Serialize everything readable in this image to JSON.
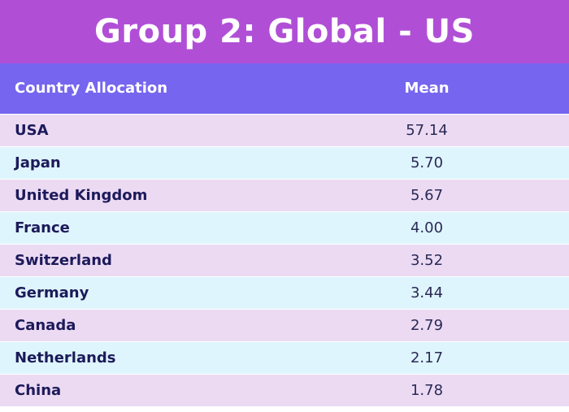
{
  "title": "Group 2: Global - US",
  "table": {
    "headers": {
      "country": "Country Allocation",
      "mean": "Mean"
    },
    "rows": [
      {
        "country": "USA",
        "mean": "57.14"
      },
      {
        "country": "Japan",
        "mean": "5.70"
      },
      {
        "country": "United Kingdom",
        "mean": "5.67"
      },
      {
        "country": "France",
        "mean": "4.00"
      },
      {
        "country": "Switzerland",
        "mean": "3.52"
      },
      {
        "country": "Germany",
        "mean": "3.44"
      },
      {
        "country": "Canada",
        "mean": "2.79"
      },
      {
        "country": "Netherlands",
        "mean": "2.17"
      },
      {
        "country": "China",
        "mean": "1.78"
      }
    ]
  },
  "colors": {
    "title_bg": "#b04fd6",
    "header_bg": "#7665ef",
    "row_odd": "#ecdaf3",
    "row_even": "#dff5fd",
    "text_dark": "#1c1a5a"
  }
}
